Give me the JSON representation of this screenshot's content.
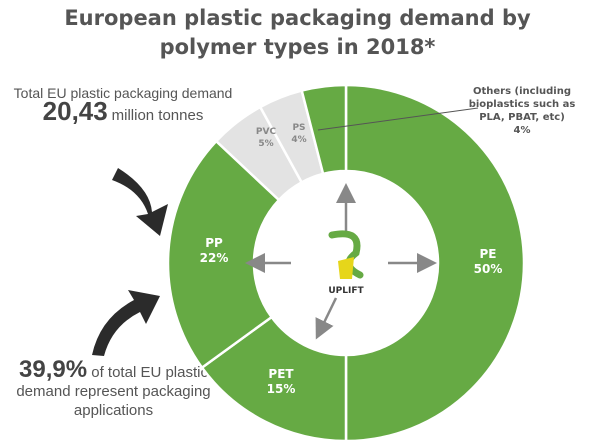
{
  "title": {
    "line1": "European plastic packaging demand by",
    "line2": "polymer types in 2018*"
  },
  "notes": {
    "total_prefix": "Total EU plastic packaging demand",
    "total_value": "20,43",
    "total_unit": "million tonnes",
    "share_value": "39,9%",
    "share_text": "of total EU plastic demand represent packaging applications"
  },
  "logo": {
    "text": "UPLIFT"
  },
  "colors": {
    "green": "#66aa44",
    "gray": "#e3e3e3",
    "dark": "#2b2b2b"
  },
  "chart_data": {
    "type": "pie",
    "title": "European plastic packaging demand by polymer types in 2018*",
    "unit": "%",
    "slices": [
      {
        "label": "PE",
        "value": 50,
        "value_label": "50%",
        "color": "#66aa44"
      },
      {
        "label": "PET",
        "value": 15,
        "value_label": "15%",
        "color": "#66aa44"
      },
      {
        "label": "PP",
        "value": 22,
        "value_label": "22%",
        "color": "#66aa44"
      },
      {
        "label": "PVC",
        "value": 5,
        "value_label": "5%",
        "color": "#e3e3e3"
      },
      {
        "label": "PS",
        "value": 4,
        "value_label": "4%",
        "color": "#e3e3e3"
      },
      {
        "label": "Others (including bioplastics such as PLA, PBAT, etc)",
        "value": 4,
        "value_label": "4%",
        "color": "#66aa44"
      }
    ]
  }
}
